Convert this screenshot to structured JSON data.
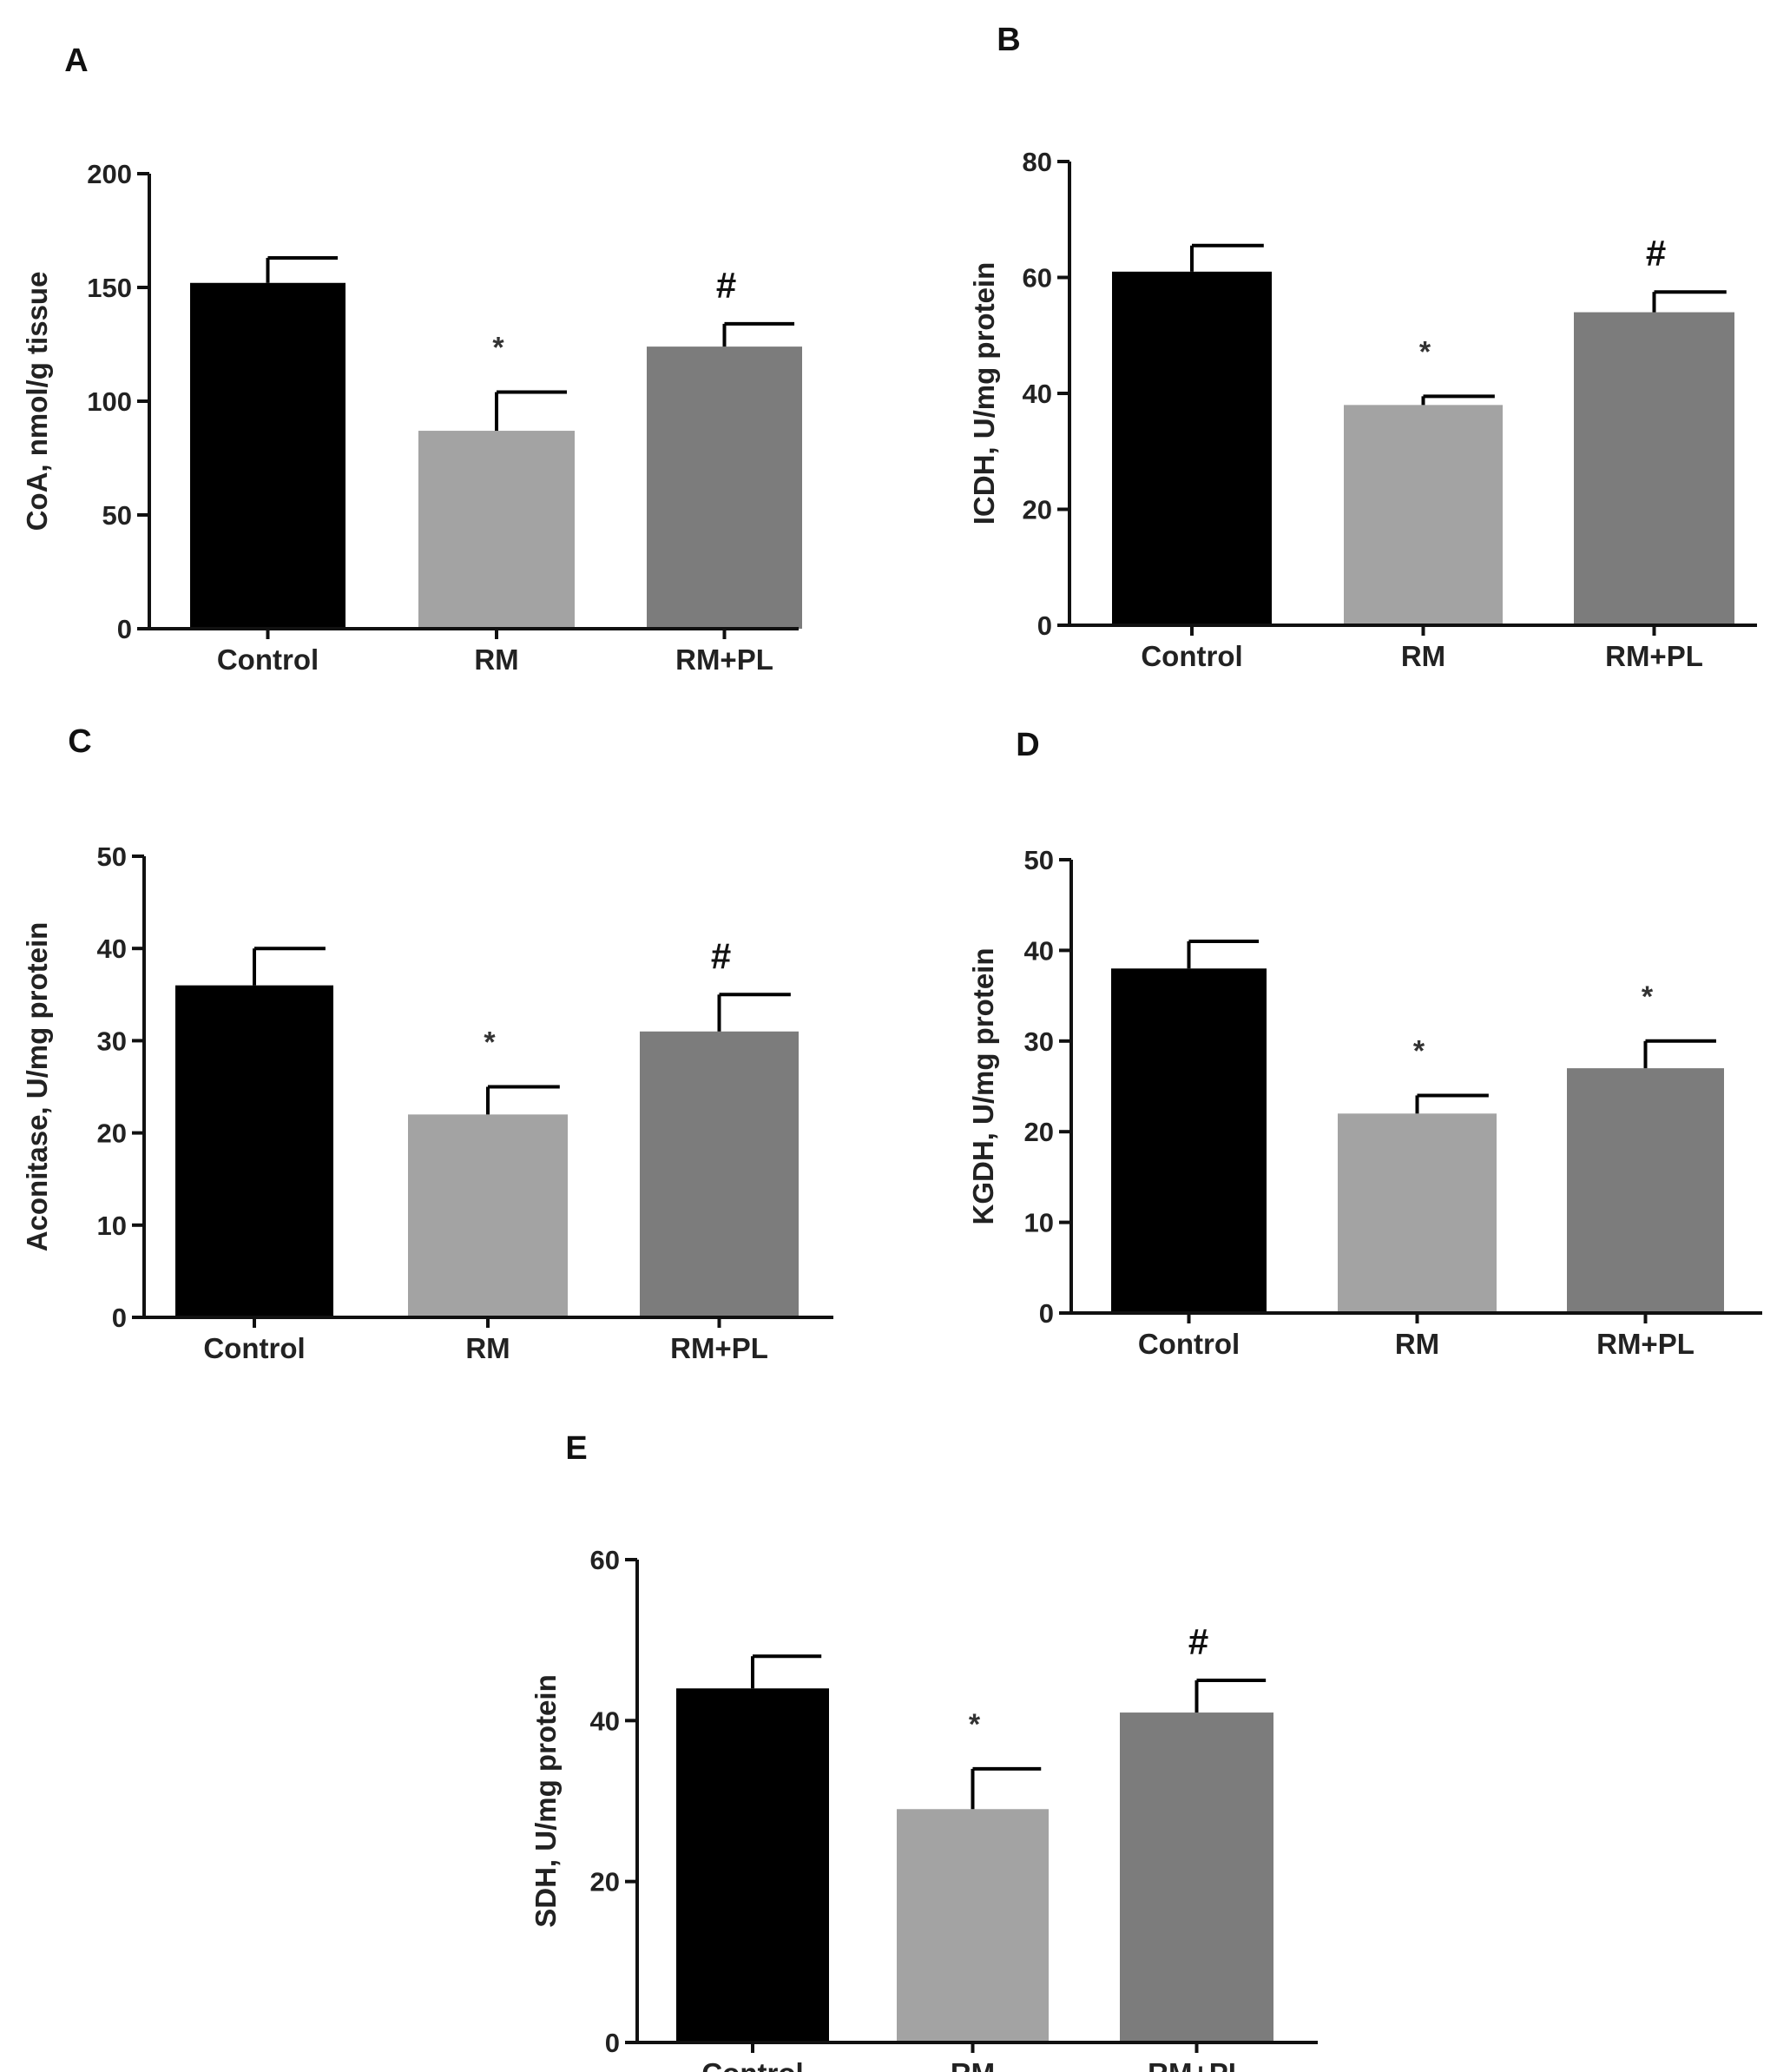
{
  "colors": {
    "axis": "#111111",
    "bars": [
      "#000000",
      "#a3a3a3",
      "#7c7c7c"
    ],
    "errorbar": "#000000"
  },
  "chart_data": [
    {
      "id": "A",
      "panel_letter": "A",
      "type": "bar",
      "categories": [
        "Control",
        "RM",
        "RM+PL"
      ],
      "values": [
        152,
        87,
        124
      ],
      "errors": [
        11,
        17,
        10
      ],
      "significance": [
        "",
        "*",
        "#"
      ],
      "ylabel": "CoA, nmol/g tissue",
      "ylim": [
        0,
        200
      ],
      "yticks": [
        0,
        50,
        100,
        150,
        200
      ],
      "ytick_labels": [
        "0",
        "50",
        "100",
        "150",
        "200"
      ]
    },
    {
      "id": "B",
      "panel_letter": "B",
      "type": "bar",
      "categories": [
        "Control",
        "RM",
        "RM+PL"
      ],
      "values": [
        61,
        38,
        54
      ],
      "errors": [
        4.5,
        1.5,
        3.5
      ],
      "significance": [
        "",
        "*",
        "#"
      ],
      "ylabel": "ICDH, U/mg protein",
      "ylim": [
        0,
        80
      ],
      "yticks": [
        0,
        20,
        40,
        60,
        80
      ],
      "ytick_labels": [
        "0",
        "20",
        "40",
        "60",
        "80"
      ]
    },
    {
      "id": "C",
      "panel_letter": "C",
      "type": "bar",
      "categories": [
        "Control",
        "RM",
        "RM+PL"
      ],
      "values": [
        36,
        22,
        31
      ],
      "errors": [
        4,
        3,
        4
      ],
      "significance": [
        "",
        "*",
        "#"
      ],
      "ylabel": "Aconitase, U/mg protein",
      "ylim": [
        0,
        50
      ],
      "yticks": [
        0,
        10,
        20,
        30,
        40,
        50
      ],
      "ytick_labels": [
        "0",
        "10",
        "20",
        "30",
        "40",
        "50"
      ]
    },
    {
      "id": "D",
      "panel_letter": "D",
      "type": "bar",
      "categories": [
        "Control",
        "RM",
        "RM+PL"
      ],
      "values": [
        38,
        22,
        27
      ],
      "errors": [
        3,
        2,
        3
      ],
      "significance": [
        "",
        "*",
        "*"
      ],
      "ylabel": "KGDH, U/mg protein",
      "ylim": [
        0,
        50
      ],
      "yticks": [
        0,
        10,
        20,
        30,
        40,
        50
      ],
      "ytick_labels": [
        "0",
        "10",
        "20",
        "30",
        "40",
        "50"
      ]
    },
    {
      "id": "E",
      "panel_letter": "E",
      "type": "bar",
      "categories": [
        "Control",
        "RM",
        "RM+PL"
      ],
      "values": [
        44,
        29,
        41
      ],
      "errors": [
        4,
        5,
        4
      ],
      "significance": [
        "",
        "*",
        "#"
      ],
      "ylabel": "SDH, U/mg protein",
      "ylim": [
        0,
        60
      ],
      "yticks": [
        0,
        20,
        40,
        60
      ],
      "ytick_labels": [
        "0",
        "20",
        "40",
        "60"
      ]
    }
  ]
}
